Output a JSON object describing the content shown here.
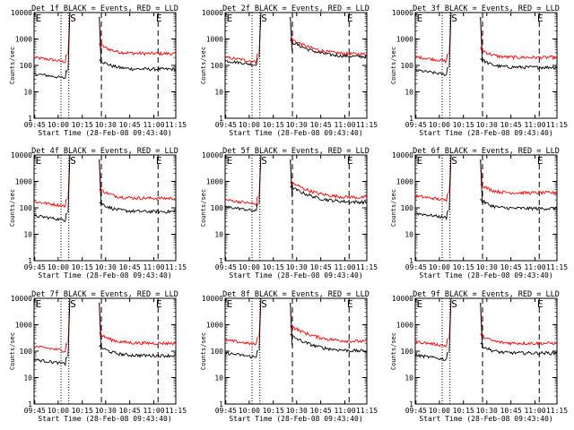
{
  "chart_data": [
    {
      "type": "line",
      "title": "Det 1f BLACK = Events, RED = LLD",
      "xlabel": "Start Time (28-Feb-08 09:43:40)",
      "ylabel": "Counts/sec",
      "xticks": [
        "09:45",
        "10:00",
        "10:15",
        "10:30",
        "10:45",
        "11:00",
        "11:15"
      ],
      "yticks": [
        "1",
        "10",
        "100",
        "1000",
        "10000"
      ],
      "ylim": [
        1,
        10000
      ],
      "markers": [
        "E",
        "S",
        "E"
      ],
      "series": [
        {
          "name": "LLD",
          "color": "#ff0000",
          "shape": "flareA",
          "pre": 200,
          "post": 280
        },
        {
          "name": "Events",
          "color": "#000000",
          "shape": "flareA",
          "pre": 48,
          "post": 72
        }
      ]
    },
    {
      "type": "line",
      "title": "Det 2f BLACK = Events, RED = LLD",
      "xlabel": "Start Time (28-Feb-08 09:43:40)",
      "ylabel": "Counts/sec",
      "xticks": [
        "09:45",
        "10:00",
        "10:15",
        "10:30",
        "10:45",
        "11:00",
        "11:15"
      ],
      "yticks": [
        "1",
        "10",
        "100",
        "1000",
        "10000"
      ],
      "ylim": [
        1,
        10000
      ],
      "markers": [
        "E",
        "S",
        "E"
      ],
      "series": [
        {
          "name": "LLD",
          "color": "#ff0000",
          "shape": "flareB",
          "pre": 200,
          "post": 260
        },
        {
          "name": "Events",
          "color": "#000000",
          "shape": "flareB",
          "pre": 150,
          "post": 210
        }
      ]
    },
    {
      "type": "line",
      "title": "Det 3f BLACK = Events, RED = LLD",
      "xlabel": "Start Time (28-Feb-08 09:43:40)",
      "ylabel": "Counts/sec",
      "xticks": [
        "09:45",
        "10:00",
        "10:15",
        "10:30",
        "10:45",
        "11:00",
        "11:15"
      ],
      "yticks": [
        "1",
        "10",
        "100",
        "1000",
        "10000"
      ],
      "ylim": [
        1,
        10000
      ],
      "markers": [
        "E",
        "S",
        "E"
      ],
      "series": [
        {
          "name": "LLD",
          "color": "#ff0000",
          "shape": "flareC",
          "pre": 210,
          "post": 200
        },
        {
          "name": "Events",
          "color": "#000000",
          "shape": "flareC",
          "pre": 65,
          "post": 85
        }
      ]
    },
    {
      "type": "line",
      "title": "Det 4f BLACK = Events, RED = LLD",
      "xlabel": "Start Time (28-Feb-08 09:43:40)",
      "ylabel": "Counts/sec",
      "xticks": [
        "09:45",
        "10:00",
        "10:15",
        "10:30",
        "10:45",
        "11:00",
        "11:15"
      ],
      "yticks": [
        "1",
        "10",
        "100",
        "1000",
        "10000"
      ],
      "ylim": [
        1,
        10000
      ],
      "markers": [
        "E",
        "S",
        "E"
      ],
      "series": [
        {
          "name": "LLD",
          "color": "#ff0000",
          "shape": "flareA",
          "pre": 170,
          "post": 230
        },
        {
          "name": "Events",
          "color": "#000000",
          "shape": "flareA",
          "pre": 50,
          "post": 72
        }
      ]
    },
    {
      "type": "line",
      "title": "Det 5f BLACK = Events, RED = LLD",
      "xlabel": "Start Time (28-Feb-08 09:43:40)",
      "ylabel": "Counts/sec",
      "xticks": [
        "09:45",
        "10:00",
        "10:15",
        "10:30",
        "10:45",
        "11:00",
        "11:15"
      ],
      "yticks": [
        "1",
        "10",
        "100",
        "1000",
        "10000"
      ],
      "ylim": [
        1,
        10000
      ],
      "markers": [
        "E",
        "S",
        "E"
      ],
      "series": [
        {
          "name": "LLD",
          "color": "#ff0000",
          "shape": "flareB",
          "pre": 200,
          "post": 240
        },
        {
          "name": "Events",
          "color": "#000000",
          "shape": "flareB",
          "pre": 110,
          "post": 160
        }
      ]
    },
    {
      "type": "line",
      "title": "Det 6f BLACK = Events, RED = LLD",
      "xlabel": "Start Time (28-Feb-08 09:43:40)",
      "ylabel": "Counts/sec",
      "xticks": [
        "09:45",
        "10:00",
        "10:15",
        "10:30",
        "10:45",
        "11:00",
        "11:15"
      ],
      "yticks": [
        "1",
        "10",
        "100",
        "1000",
        "10000"
      ],
      "ylim": [
        1,
        10000
      ],
      "markers": [
        "E",
        "S",
        "E"
      ],
      "series": [
        {
          "name": "LLD",
          "color": "#ff0000",
          "shape": "flareC",
          "pre": 280,
          "post": 370
        },
        {
          "name": "Events",
          "color": "#000000",
          "shape": "flareC",
          "pre": 62,
          "post": 95
        }
      ]
    },
    {
      "type": "line",
      "title": "Det 7f BLACK = Events, RED = LLD",
      "xlabel": "Start Time (28-Feb-08 09:43:40)",
      "ylabel": "Counts/sec",
      "xticks": [
        "09:45",
        "10:00",
        "10:15",
        "10:30",
        "10:45",
        "11:00",
        "11:15"
      ],
      "yticks": [
        "1",
        "10",
        "100",
        "1000",
        "10000"
      ],
      "ylim": [
        1,
        10000
      ],
      "markers": [
        "E",
        "S",
        "E"
      ],
      "series": [
        {
          "name": "LLD",
          "color": "#ff0000",
          "shape": "flareA",
          "pre": 150,
          "post": 200
        },
        {
          "name": "Events",
          "color": "#000000",
          "shape": "flareA",
          "pre": 48,
          "post": 68
        }
      ]
    },
    {
      "type": "line",
      "title": "Det 8f BLACK = Events, RED = LLD",
      "xlabel": "Start Time (28-Feb-08 09:43:40)",
      "ylabel": "Counts/sec",
      "xticks": [
        "09:45",
        "10:00",
        "10:15",
        "10:30",
        "10:45",
        "11:00",
        "11:15"
      ],
      "yticks": [
        "1",
        "10",
        "100",
        "1000",
        "10000"
      ],
      "ylim": [
        1,
        10000
      ],
      "markers": [
        "E",
        "S",
        "E"
      ],
      "series": [
        {
          "name": "LLD",
          "color": "#ff0000",
          "shape": "flareB",
          "pre": 260,
          "post": 230
        },
        {
          "name": "Events",
          "color": "#000000",
          "shape": "flareB",
          "pre": 85,
          "post": 100
        }
      ]
    },
    {
      "type": "line",
      "title": "Det 9f BLACK = Events, RED = LLD",
      "xlabel": "Start Time (28-Feb-08 09:43:40)",
      "ylabel": "Counts/sec",
      "xticks": [
        "09:45",
        "10:00",
        "10:15",
        "10:30",
        "10:45",
        "11:00",
        "11:15"
      ],
      "yticks": [
        "1",
        "10",
        "100",
        "1000",
        "10000"
      ],
      "ylim": [
        1,
        10000
      ],
      "markers": [
        "E",
        "S",
        "E"
      ],
      "series": [
        {
          "name": "LLD",
          "color": "#ff0000",
          "shape": "flareC",
          "pre": 230,
          "post": 200
        },
        {
          "name": "Events",
          "color": "#000000",
          "shape": "flareC",
          "pre": 70,
          "post": 85
        }
      ]
    }
  ]
}
